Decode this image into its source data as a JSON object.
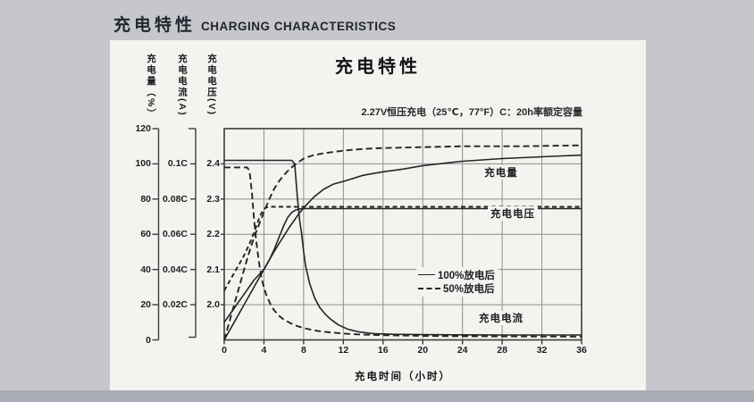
{
  "page": {
    "header_cn": "充电特性",
    "header_en": "CHARGING CHARACTERISTICS"
  },
  "labels": {
    "charge": "充电量",
    "voltage": "充电电压",
    "current": "充电电流"
  },
  "chart_data": {
    "type": "line",
    "title": "充电特性",
    "condition": "2.27V恒压充电（25℃，77°F）C：20h率额定容量",
    "grid": true,
    "legend_position": "inside-middle-right",
    "x_axis": {
      "label": "充电时间（小时）",
      "unit": "h",
      "range": [
        0,
        36
      ],
      "ticks": [
        0,
        4,
        8,
        12,
        16,
        20,
        24,
        28,
        32,
        36
      ]
    },
    "y_axes": [
      {
        "label": "充电量（%）",
        "range": [
          0,
          120
        ],
        "ticks": [
          0,
          20,
          40,
          60,
          80,
          100,
          120
        ]
      },
      {
        "label": "充电电流(A)",
        "ticks": [
          "0.02C",
          "0.04C",
          "0.06C",
          "0.08C",
          "0.1C"
        ],
        "aligned_pct": [
          20,
          40,
          60,
          80,
          100
        ]
      },
      {
        "label": "充电电压(V)",
        "ticks": [
          "2.0",
          "2.1",
          "2.2",
          "2.3",
          "2.4"
        ],
        "aligned_pct": [
          20,
          40,
          60,
          80,
          100
        ]
      }
    ],
    "legend": [
      {
        "label": "100%放电后",
        "style": "solid"
      },
      {
        "label": "50%放电后",
        "style": "dashed"
      }
    ],
    "series": [
      {
        "name": "充电量 100%放电后",
        "quantity": "charge",
        "discharge": "100%",
        "style": "solid",
        "unit": "%",
        "points": [
          [
            0,
            0
          ],
          [
            1,
            10
          ],
          [
            2,
            20
          ],
          [
            3,
            30
          ],
          [
            4,
            40
          ],
          [
            5,
            50
          ],
          [
            5.5,
            54.5
          ],
          [
            6,
            59
          ],
          [
            6.5,
            63.5
          ],
          [
            7,
            67.5
          ],
          [
            7.5,
            71.5
          ],
          [
            8,
            75
          ],
          [
            9,
            81
          ],
          [
            10,
            85.5
          ],
          [
            11,
            88.5
          ],
          [
            12,
            90
          ],
          [
            14,
            93.5
          ],
          [
            16,
            95.5
          ],
          [
            18,
            97
          ],
          [
            20,
            99
          ],
          [
            24,
            101.5
          ],
          [
            28,
            103
          ],
          [
            32,
            104
          ],
          [
            36,
            105
          ]
        ]
      },
      {
        "name": "充电量 50%放电后",
        "quantity": "charge",
        "discharge": "50%",
        "style": "dashed",
        "unit": "%",
        "points": [
          [
            0,
            0
          ],
          [
            0.5,
            10
          ],
          [
            1,
            20
          ],
          [
            1.5,
            30
          ],
          [
            2,
            40
          ],
          [
            2.5,
            49.5
          ],
          [
            3,
            58
          ],
          [
            3.5,
            65.5
          ],
          [
            4,
            72.5
          ],
          [
            4.5,
            79.5
          ],
          [
            5,
            85.5
          ],
          [
            5.5,
            90
          ],
          [
            6,
            93.5
          ],
          [
            6.5,
            96.5
          ],
          [
            7,
            99
          ],
          [
            7.5,
            101
          ],
          [
            8,
            103
          ],
          [
            9,
            105
          ],
          [
            10,
            106
          ],
          [
            12,
            107.5
          ],
          [
            14,
            108.5
          ],
          [
            16,
            109
          ],
          [
            20,
            109.5
          ],
          [
            24,
            110
          ],
          [
            30,
            110
          ],
          [
            36,
            110.5
          ]
        ]
      },
      {
        "name": "充电电压 100%放电后",
        "quantity": "voltage",
        "discharge": "100%",
        "style": "solid",
        "unit": "V",
        "points": [
          [
            0,
            1.95
          ],
          [
            0.5,
            1.97
          ],
          [
            1,
            1.99
          ],
          [
            1.5,
            2.01
          ],
          [
            2,
            2.03
          ],
          [
            2.5,
            2.05
          ],
          [
            3,
            2.07
          ],
          [
            3.5,
            2.085
          ],
          [
            4,
            2.1
          ],
          [
            4.5,
            2.125
          ],
          [
            5,
            2.155
          ],
          [
            5.5,
            2.19
          ],
          [
            6,
            2.225
          ],
          [
            6.4,
            2.248
          ],
          [
            6.8,
            2.262
          ],
          [
            7.2,
            2.269
          ],
          [
            7.6,
            2.272
          ],
          [
            8,
            2.273
          ],
          [
            36,
            2.273
          ]
        ]
      },
      {
        "name": "充电电压 50%放电后",
        "quantity": "voltage",
        "discharge": "50%",
        "style": "dashed",
        "unit": "V",
        "points": [
          [
            0,
            2.04
          ],
          [
            0.5,
            2.065
          ],
          [
            1,
            2.09
          ],
          [
            1.5,
            2.115
          ],
          [
            2,
            2.14
          ],
          [
            2.5,
            2.17
          ],
          [
            3,
            2.205
          ],
          [
            3.3,
            2.228
          ],
          [
            3.6,
            2.252
          ],
          [
            3.9,
            2.268
          ],
          [
            4.2,
            2.276
          ],
          [
            4.6,
            2.278
          ],
          [
            36,
            2.278
          ]
        ]
      },
      {
        "name": "充电电流 100%放电后",
        "quantity": "current",
        "discharge": "100%",
        "style": "solid",
        "unit": "CA",
        "points": [
          [
            0,
            0.102
          ],
          [
            6.8,
            0.102
          ],
          [
            7.1,
            0.1
          ],
          [
            7.35,
            0.082
          ],
          [
            7.6,
            0.068
          ],
          [
            7.8,
            0.06
          ],
          [
            8,
            0.05
          ],
          [
            8.2,
            0.042
          ],
          [
            8.6,
            0.032
          ],
          [
            9.1,
            0.024
          ],
          [
            9.6,
            0.0185
          ],
          [
            10.2,
            0.0145
          ],
          [
            10.7,
            0.0118
          ],
          [
            11.5,
            0.0085
          ],
          [
            12.5,
            0.006
          ],
          [
            13.6,
            0.0045
          ],
          [
            15,
            0.0036
          ],
          [
            17,
            0.0032
          ],
          [
            20,
            0.003
          ],
          [
            24,
            0.0029
          ],
          [
            28,
            0.0028
          ],
          [
            32,
            0.0028
          ],
          [
            36,
            0.0028
          ]
        ]
      },
      {
        "name": "充电电流 50%放电后",
        "quantity": "current",
        "discharge": "50%",
        "style": "dashed",
        "unit": "CA",
        "points": [
          [
            0,
            0.098
          ],
          [
            2.3,
            0.098
          ],
          [
            2.55,
            0.096
          ],
          [
            2.8,
            0.083
          ],
          [
            3,
            0.069
          ],
          [
            3.2,
            0.057
          ],
          [
            3.5,
            0.044
          ],
          [
            3.8,
            0.034
          ],
          [
            4.2,
            0.026
          ],
          [
            4.6,
            0.021
          ],
          [
            5,
            0.017
          ],
          [
            5.5,
            0.0138
          ],
          [
            6,
            0.0115
          ],
          [
            7,
            0.0085
          ],
          [
            8,
            0.0067
          ],
          [
            9,
            0.0055
          ],
          [
            10,
            0.0046
          ],
          [
            12,
            0.0036
          ],
          [
            14,
            0.003
          ],
          [
            16,
            0.0027
          ],
          [
            20,
            0.0023
          ],
          [
            24,
            0.0021
          ],
          [
            30,
            0.002
          ],
          [
            36,
            0.0019
          ]
        ]
      }
    ]
  }
}
